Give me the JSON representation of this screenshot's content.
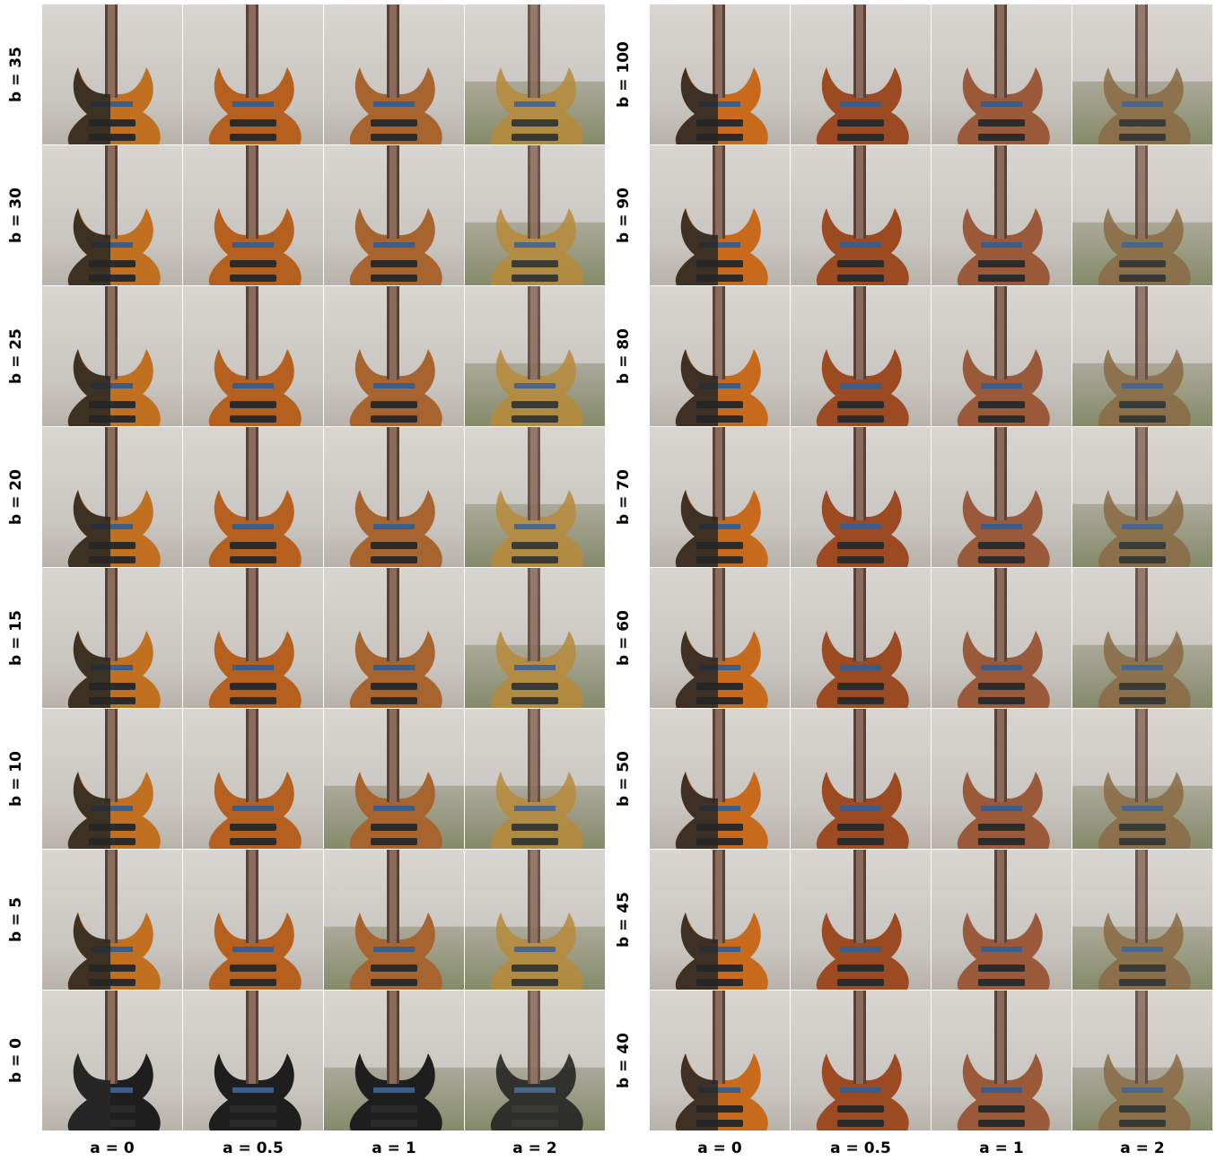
{
  "left_panel": {
    "row_labels": [
      "b = 35",
      "b = 30",
      "b = 25",
      "b = 20",
      "b = 15",
      "b = 10",
      "b = 5",
      "b = 0"
    ],
    "column_labels": [
      "a = 0",
      "a = 0.5",
      "a = 1",
      "a = 2"
    ]
  },
  "right_panel": {
    "row_labels": [
      "b = 100",
      "b = 90",
      "b = 80",
      "b = 70",
      "b = 60",
      "b = 50",
      "b = 45",
      "b = 40"
    ],
    "column_labels": [
      "a = 0",
      "a = 0.5",
      "a = 1",
      "a = 2"
    ]
  }
}
